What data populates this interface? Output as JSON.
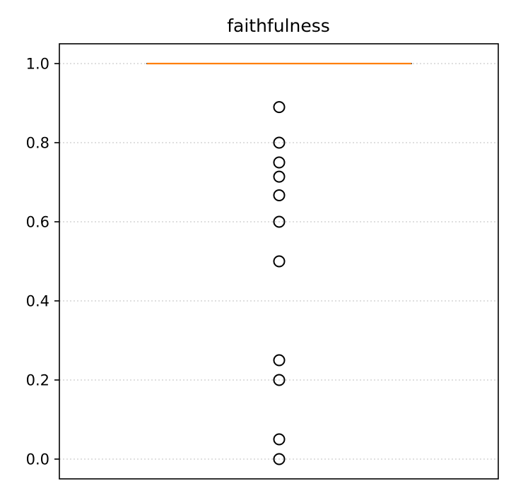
{
  "chart_data": {
    "type": "box",
    "title": "faithfulness",
    "xlabel": "",
    "ylabel": "",
    "ylim": [
      -0.05,
      1.05
    ],
    "y_ticks": [
      0.0,
      0.2,
      0.4,
      0.6,
      0.8,
      1.0
    ],
    "y_tick_labels": [
      "0.0",
      "0.2",
      "0.4",
      "0.6",
      "0.8",
      "1.0"
    ],
    "grid": "y-dotted",
    "box": {
      "q1": 1.0,
      "median": 1.0,
      "q3": 1.0,
      "whisker_low": 1.0,
      "whisker_high": 1.0
    },
    "outliers": [
      0.89,
      0.8,
      0.75,
      0.714,
      0.667,
      0.6,
      0.5,
      0.25,
      0.2,
      0.05,
      0.0
    ],
    "colors": {
      "median": "#ff7f0e",
      "box": "#000000",
      "outlier_edge": "#000000",
      "grid": "#cccccc",
      "axes": "#000000"
    }
  }
}
